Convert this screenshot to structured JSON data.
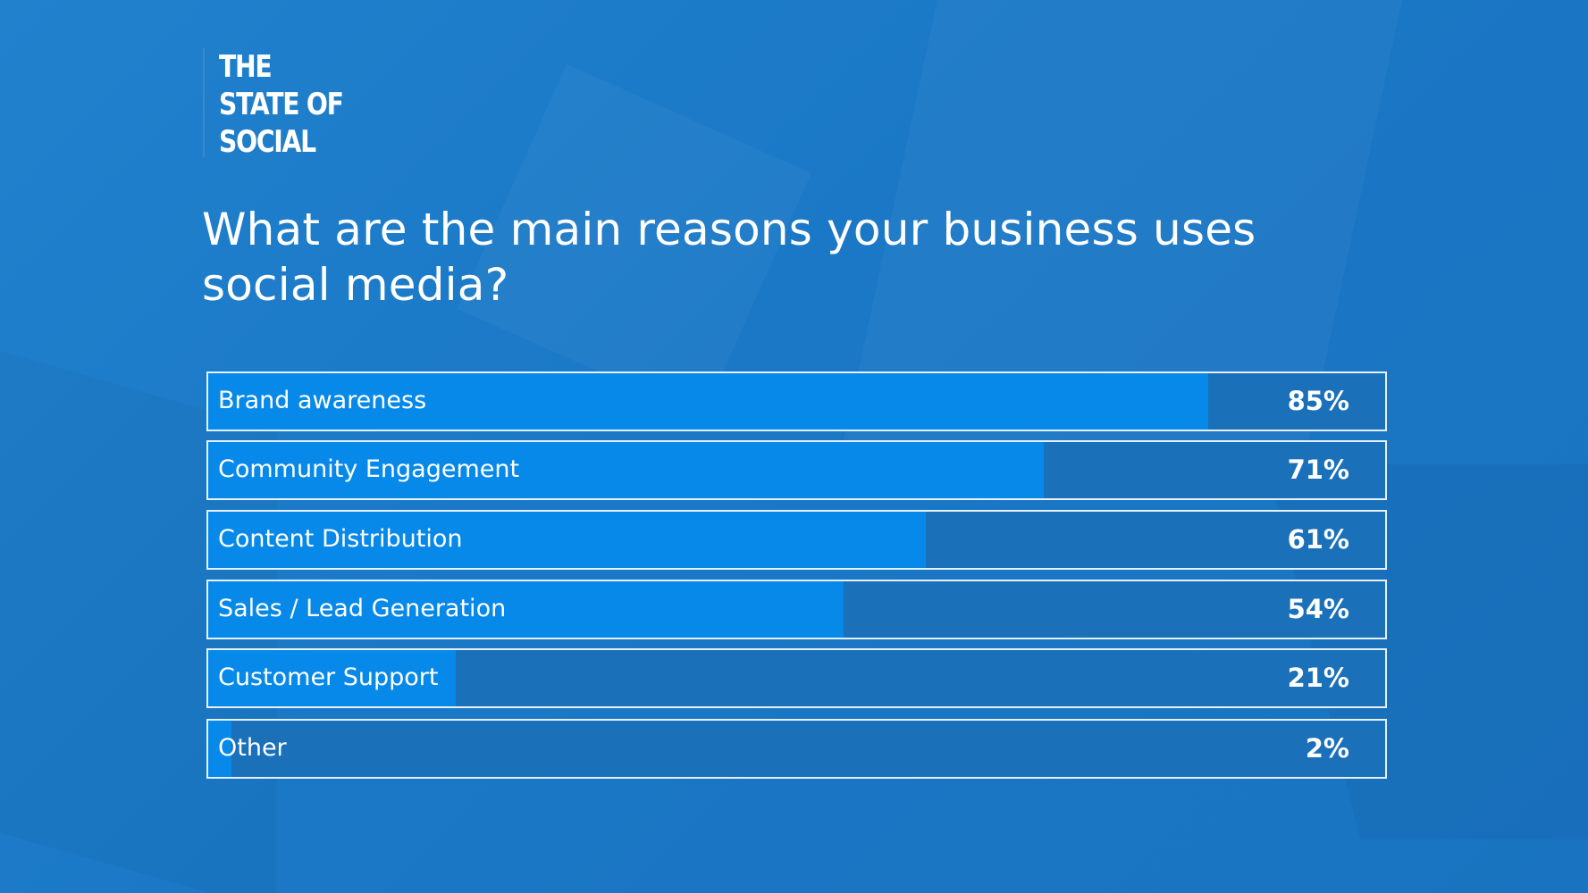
{
  "brand": {
    "lines": [
      "THE",
      "STATE OF",
      "SOCIAL"
    ]
  },
  "chart_data": {
    "type": "bar",
    "orientation": "horizontal",
    "title": "What are the main reasons your business uses social media?",
    "categories": [
      "Brand awareness",
      "Community Engagement",
      "Content Distribution",
      "Sales / Lead Generation",
      "Customer Support",
      "Other"
    ],
    "values": [
      85,
      71,
      61,
      54,
      21,
      2
    ],
    "value_labels": [
      "85%",
      "71%",
      "61%",
      "54%",
      "21%",
      "2%"
    ],
    "xlim": [
      0,
      100
    ],
    "grid": false,
    "legend": "none"
  },
  "colors": {
    "background": "#1b78c6",
    "bar_fill": "#0789ea",
    "bar_track": "#1a70b9",
    "bar_border": "#e6f1fb",
    "text": "#ffffff"
  }
}
